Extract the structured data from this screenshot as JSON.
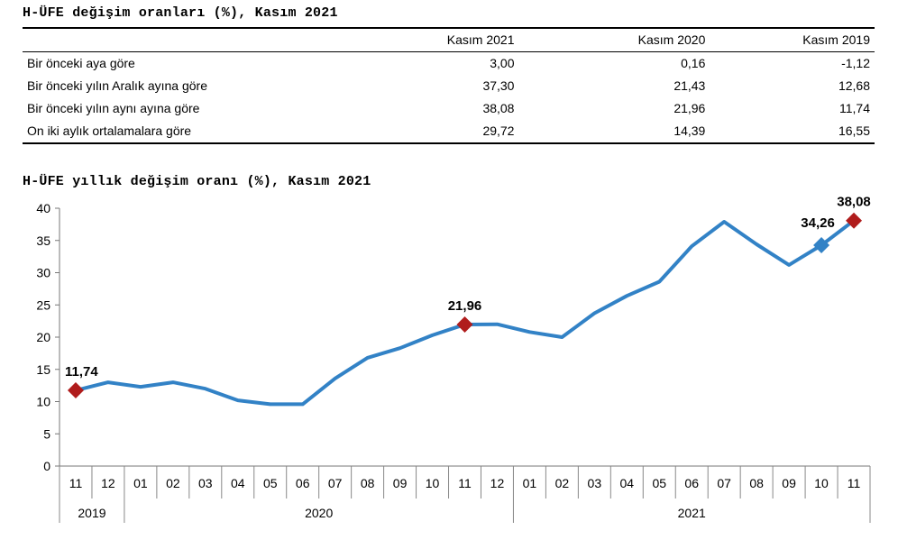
{
  "table": {
    "title": "H-ÜFE değişim oranları (%), Kasım 2021",
    "columns": [
      "",
      "Kasım 2021",
      "Kasım 2020",
      "Kasım 2019"
    ],
    "rows": [
      {
        "label": "Bir önceki aya göre",
        "values": [
          "3,00",
          "0,16",
          "-1,12"
        ]
      },
      {
        "label": "Bir önceki yılın Aralık ayına göre",
        "values": [
          "37,30",
          "21,43",
          "12,68"
        ]
      },
      {
        "label": "Bir önceki yılın aynı ayına göre",
        "values": [
          "38,08",
          "21,96",
          "11,74"
        ]
      },
      {
        "label": "On iki aylık ortalamalara göre",
        "values": [
          "29,72",
          "14,39",
          "16,55"
        ]
      }
    ]
  },
  "chart_data": {
    "type": "line",
    "title": "H-ÜFE yıllık değişim oranı (%), Kasım 2021",
    "xlabel": "",
    "ylabel": "",
    "ylim": [
      0,
      40
    ],
    "yticks": [
      0,
      5,
      10,
      15,
      20,
      25,
      30,
      35,
      40
    ],
    "categories": [
      "11",
      "12",
      "01",
      "02",
      "03",
      "04",
      "05",
      "06",
      "07",
      "08",
      "09",
      "10",
      "11",
      "12",
      "01",
      "02",
      "03",
      "04",
      "05",
      "06",
      "07",
      "08",
      "09",
      "10",
      "11"
    ],
    "year_groups": [
      {
        "label": "2019",
        "start": 0,
        "end": 1
      },
      {
        "label": "2020",
        "start": 2,
        "end": 13
      },
      {
        "label": "2021",
        "start": 14,
        "end": 24
      }
    ],
    "series": [
      {
        "values": [
          11.74,
          13.0,
          12.3,
          13.0,
          12.0,
          10.2,
          9.6,
          9.6,
          13.6,
          16.8,
          18.3,
          20.3,
          21.96,
          22.0,
          20.8,
          20.0,
          23.7,
          26.4,
          28.6,
          34.1,
          37.9,
          34.4,
          31.2,
          34.26,
          38.08
        ],
        "color": "#3282C6"
      }
    ],
    "markers": [
      {
        "index": 0,
        "label": "11,74",
        "color": "#B01C1C"
      },
      {
        "index": 12,
        "label": "21,96",
        "color": "#B01C1C"
      },
      {
        "index": 23,
        "label": "34,26",
        "color": "#3282C6"
      },
      {
        "index": 24,
        "label": "38,08",
        "color": "#B01C1C"
      }
    ],
    "grid": false,
    "legend": "none"
  }
}
